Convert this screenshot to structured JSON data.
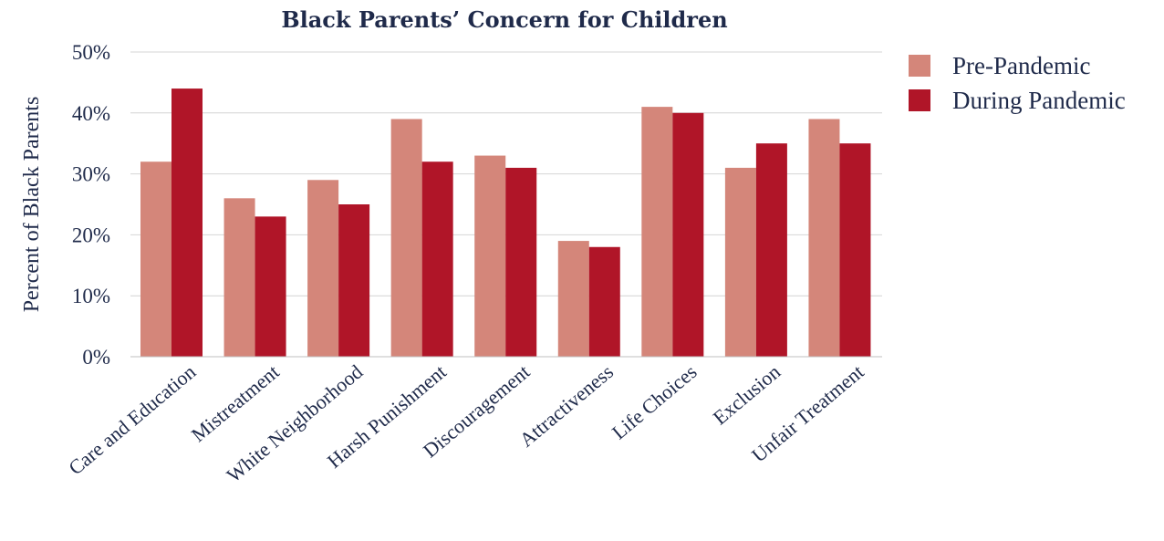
{
  "chart_data": {
    "type": "bar",
    "title": "Black Parents’ Concern for Children",
    "ylabel": "Percent of Black Parents",
    "xlabel": "",
    "ylim": [
      0,
      50
    ],
    "yticks": [
      0,
      10,
      20,
      30,
      40,
      50
    ],
    "ytick_labels": [
      "0%",
      "10%",
      "20%",
      "30%",
      "40%",
      "50%"
    ],
    "categories": [
      "Care and Education",
      "Mistreatment",
      "White Neighborhood",
      "Harsh Punishment",
      "Discouragement",
      "Attractiveness",
      "Life Choices",
      "Exclusion",
      "Unfair Treatment"
    ],
    "series": [
      {
        "name": "Pre-Pandemic",
        "color": "#d4867a",
        "values": [
          32,
          26,
          29,
          39,
          33,
          19,
          41,
          31,
          39
        ]
      },
      {
        "name": "During Pandemic",
        "color": "#b01528",
        "values": [
          44,
          23,
          25,
          32,
          31,
          18,
          40,
          35,
          35
        ]
      }
    ],
    "grid": true,
    "legend_position": "top-right"
  }
}
